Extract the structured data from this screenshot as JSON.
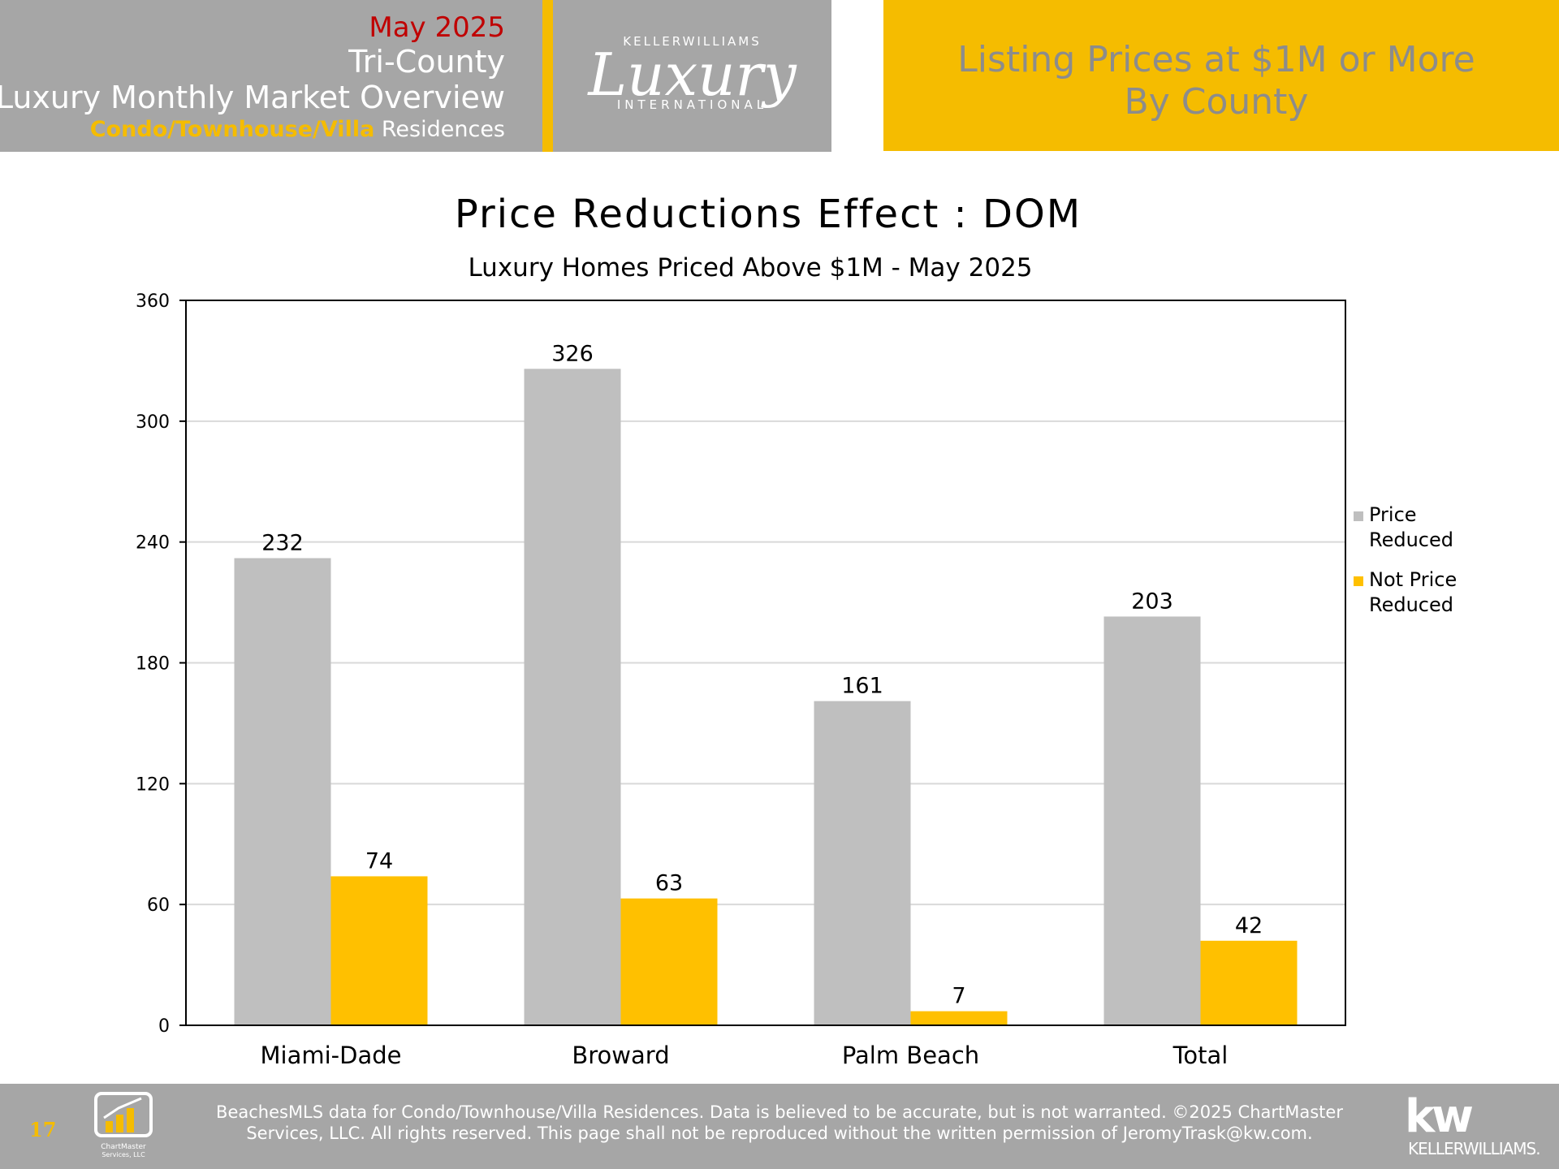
{
  "header": {
    "date": "May 2025",
    "region": "Tri-County",
    "report_title": "Luxury Monthly Market Overview",
    "segment_highlight": "Condo/Townhouse/Villa",
    "segment_rest": " Residences",
    "logo": {
      "brand_top": "KELLERWILLIAMS",
      "brand_script": "Luxury",
      "brand_bottom": "INTERNATIONAL"
    },
    "banner_line1": "Listing Prices at $1M or More",
    "banner_line2": "By County"
  },
  "colors": {
    "gray": "#bfbfbf",
    "gold": "#ffc000",
    "header_gray": "#a6a6a6",
    "header_gold": "#f5bc00",
    "date_red": "#c00000"
  },
  "chart_data": {
    "type": "bar",
    "title": "Price Reductions Effect : DOM",
    "subtitle": "Luxury Homes Priced Above $1M - May 2025",
    "categories": [
      "Miami-Dade",
      "Broward",
      "Palm Beach",
      "Total"
    ],
    "series": [
      {
        "name": "Price Reduced",
        "legend_lines": [
          "Price",
          "Reduced"
        ],
        "color": "#bfbfbf",
        "values": [
          232,
          326,
          161,
          203
        ]
      },
      {
        "name": "Not Price Reduced",
        "legend_lines": [
          "Not Price",
          "Reduced"
        ],
        "color": "#ffc000",
        "values": [
          74,
          63,
          7,
          42
        ]
      }
    ],
    "ylim": [
      0,
      360
    ],
    "yticks": [
      0,
      60,
      120,
      180,
      240,
      300,
      360
    ],
    "grid": true,
    "legend": "right",
    "data_labels": true,
    "xlabel": "",
    "ylabel": ""
  },
  "footer": {
    "page_number": "17",
    "chartmaster_logo_line1": "ChartMaster",
    "chartmaster_logo_line2": "Services, LLC",
    "disclaimer_line1": "BeachesMLS data for Condo/Townhouse/Villa Residences.  Data is believed to be accurate, but is not warranted.   ©2025  ChartMaster",
    "disclaimer_line2": "Services, LLC.  All rights reserved. This page shall not be reproduced without the written permission of JeromyTrask@kw.com.",
    "kw_mark": "kw",
    "kw_name": "KELLERWILLIAMS."
  }
}
